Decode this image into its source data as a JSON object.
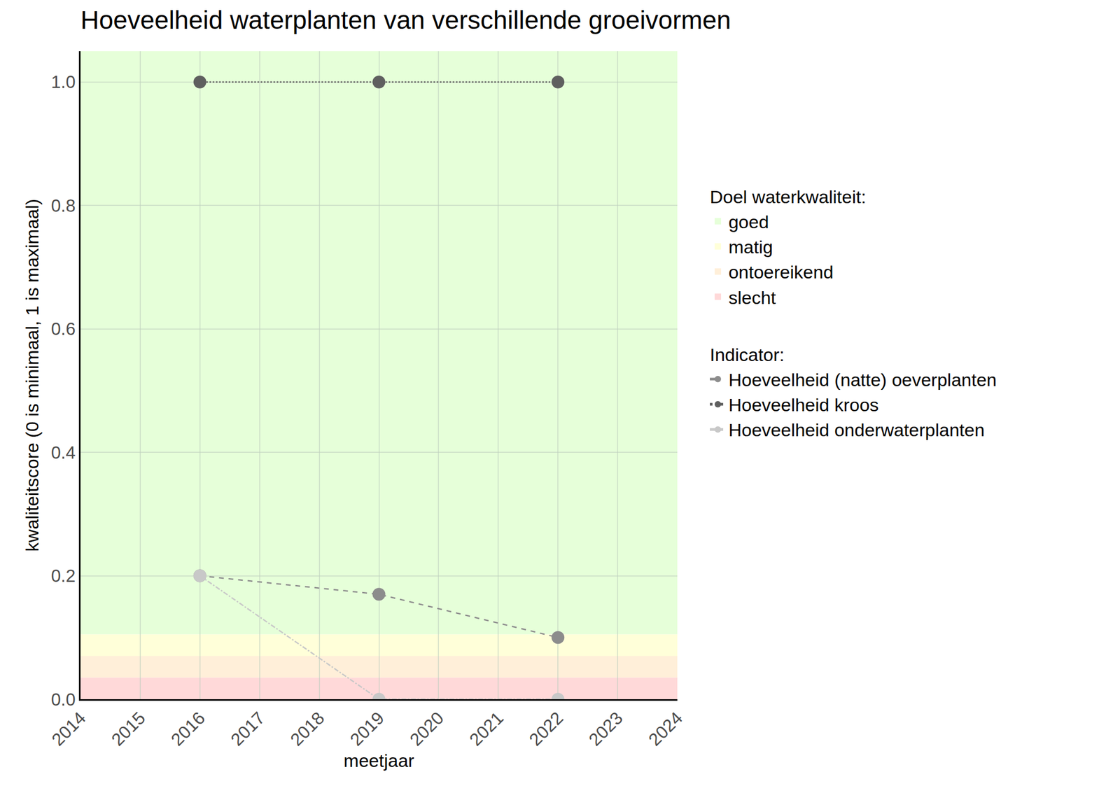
{
  "chart_data": {
    "type": "line",
    "title": "Hoeveelheid waterplanten van verschillende groeivormen",
    "x_label": "meetjaar",
    "y_label": "kwaliteitscore (0 is minimaal, 1 is maximaal)",
    "xlim": [
      2014,
      2024
    ],
    "xticks": [
      2014,
      2015,
      2016,
      2017,
      2018,
      2019,
      2020,
      2021,
      2022,
      2023,
      2024
    ],
    "ylim": [
      0,
      1.05
    ],
    "yticks": [
      {
        "value": 0,
        "label": "0.0"
      },
      0.2,
      0.4,
      0.6,
      0.8,
      {
        "value": 1,
        "label": "1.0"
      }
    ],
    "grid": true,
    "legend": "right",
    "band_legend_title": "Doel waterkwaliteit:",
    "series_legend_title": "Indicator:",
    "bands": [
      {
        "name": "goed",
        "color": "#e6ffd9",
        "from": 0.105,
        "to": 1.05
      },
      {
        "name": "matig",
        "color": "#ffffd9",
        "from": 0.07,
        "to": 0.105
      },
      {
        "name": "ontoereikend",
        "color": "#ffefd9",
        "from": 0.035,
        "to": 0.07
      },
      {
        "name": "slecht",
        "color": "#ffd9d9",
        "from": 0,
        "to": 0.035
      }
    ],
    "x": [
      2016,
      2019,
      2022
    ],
    "series": [
      {
        "name": "Hoeveelheid (natte) oeverplanten",
        "color": "#8c8c8c",
        "line_style": "dash",
        "marker": "circle",
        "values": [
          0.2,
          0.17,
          0.1
        ]
      },
      {
        "name": "Hoeveelheid kroos",
        "color": "#5f5f5f",
        "line_style": "dot",
        "marker": "circle",
        "values": [
          1,
          1,
          1
        ]
      },
      {
        "name": "Hoeveelheid onderwaterplanten",
        "color": "#c8c8c8",
        "line_style": "dashdot",
        "marker": "circle",
        "values": [
          0.2,
          0,
          0
        ]
      }
    ]
  }
}
